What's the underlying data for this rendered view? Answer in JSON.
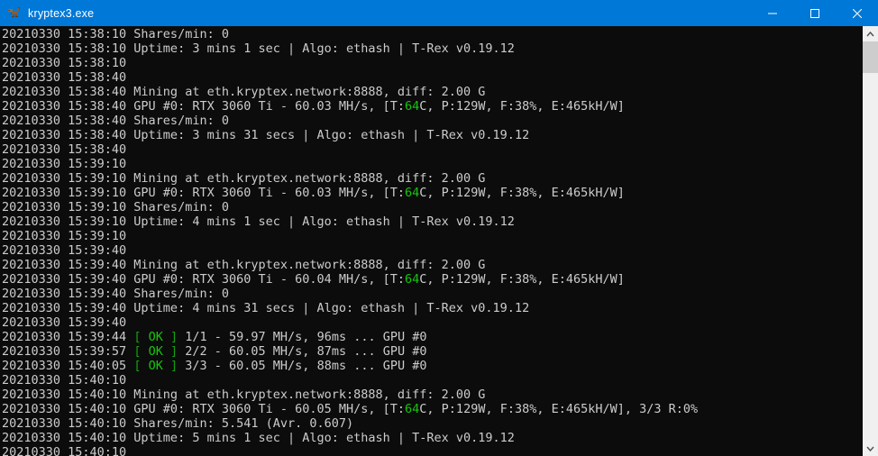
{
  "window": {
    "title": "kryptex3.exe",
    "icons": {
      "app_icon": "trex-dino-icon",
      "controls": [
        "minimize-icon",
        "maximize-icon",
        "close-icon"
      ]
    }
  },
  "colors": {
    "titlebar_bg": "#0078d7",
    "titlebar_fg": "#ffffff",
    "console_bg": "#0c0c0c",
    "console_fg": "#cccccc",
    "green": "#16c60c",
    "dkgreen": "#13a10e",
    "scrollbar_track": "#f0f0f0",
    "scrollbar_thumb": "#cdcdcd",
    "scrollbar_arrow": "#505050"
  },
  "scrollbar": {
    "icons": [
      "scroll-up-icon",
      "scroll-down-icon"
    ]
  },
  "console": {
    "lines": [
      [
        "20210330 15:38:10 Shares/min: 0"
      ],
      [
        "20210330 15:38:10 Uptime: 3 mins 1 sec | Algo: ethash | T-Rex v0.19.12"
      ],
      [
        "20210330 15:38:10"
      ],
      [
        "20210330 15:38:40"
      ],
      [
        "20210330 15:38:40 Mining at eth.kryptex.network:8888, diff: 2.00 G"
      ],
      [
        "20210330 15:38:40 GPU #0: RTX 3060 Ti - 60.03 MH/s, [T:",
        {
          "t": "64",
          "c": "green"
        },
        "C, P:129W, F:38%, E:465kH/W]"
      ],
      [
        "20210330 15:38:40 Shares/min: 0"
      ],
      [
        "20210330 15:38:40 Uptime: 3 mins 31 secs | Algo: ethash | T-Rex v0.19.12"
      ],
      [
        "20210330 15:38:40"
      ],
      [
        "20210330 15:39:10"
      ],
      [
        "20210330 15:39:10 Mining at eth.kryptex.network:8888, diff: 2.00 G"
      ],
      [
        "20210330 15:39:10 GPU #0: RTX 3060 Ti - 60.03 MH/s, [T:",
        {
          "t": "64",
          "c": "green"
        },
        "C, P:129W, F:38%, E:465kH/W]"
      ],
      [
        "20210330 15:39:10 Shares/min: 0"
      ],
      [
        "20210330 15:39:10 Uptime: 4 mins 1 sec | Algo: ethash | T-Rex v0.19.12"
      ],
      [
        "20210330 15:39:10"
      ],
      [
        "20210330 15:39:40"
      ],
      [
        "20210330 15:39:40 Mining at eth.kryptex.network:8888, diff: 2.00 G"
      ],
      [
        "20210330 15:39:40 GPU #0: RTX 3060 Ti - 60.04 MH/s, [T:",
        {
          "t": "64",
          "c": "green"
        },
        "C, P:129W, F:38%, E:465kH/W]"
      ],
      [
        "20210330 15:39:40 Shares/min: 0"
      ],
      [
        "20210330 15:39:40 Uptime: 4 mins 31 secs | Algo: ethash | T-Rex v0.19.12"
      ],
      [
        "20210330 15:39:40"
      ],
      [
        "20210330 15:39:44 ",
        {
          "t": "[",
          "c": "dkgreen"
        },
        " ",
        {
          "t": "OK",
          "c": "green"
        },
        " ",
        {
          "t": "]",
          "c": "dkgreen"
        },
        " 1/1 - 59.97 MH/s, 96ms ... GPU #0"
      ],
      [
        "20210330 15:39:57 ",
        {
          "t": "[",
          "c": "dkgreen"
        },
        " ",
        {
          "t": "OK",
          "c": "green"
        },
        " ",
        {
          "t": "]",
          "c": "dkgreen"
        },
        " 2/2 - 60.05 MH/s, 87ms ... GPU #0"
      ],
      [
        "20210330 15:40:05 ",
        {
          "t": "[",
          "c": "dkgreen"
        },
        " ",
        {
          "t": "OK",
          "c": "green"
        },
        " ",
        {
          "t": "]",
          "c": "dkgreen"
        },
        " 3/3 - 60.05 MH/s, 88ms ... GPU #0"
      ],
      [
        "20210330 15:40:10"
      ],
      [
        "20210330 15:40:10 Mining at eth.kryptex.network:8888, diff: 2.00 G"
      ],
      [
        "20210330 15:40:10 GPU #0: RTX 3060 Ti - 60.05 MH/s, [T:",
        {
          "t": "64",
          "c": "green"
        },
        "C, P:129W, F:38%, E:465kH/W], 3/3 R:0%"
      ],
      [
        "20210330 15:40:10 Shares/min: 5.541 (Avr. 0.607)"
      ],
      [
        "20210330 15:40:10 Uptime: 5 mins 1 sec | Algo: ethash | T-Rex v0.19.12"
      ],
      [
        "20210330 15:40:10"
      ]
    ]
  }
}
